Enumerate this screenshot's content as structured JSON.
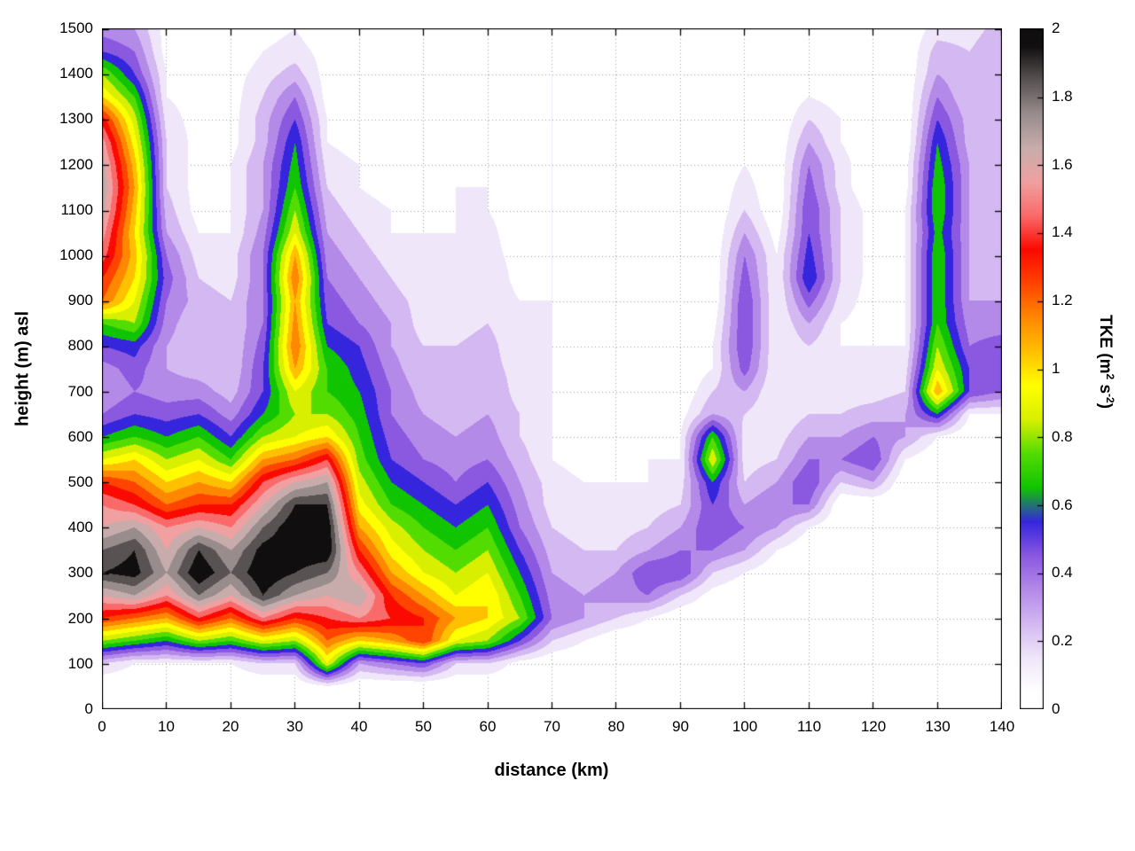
{
  "chart_data": {
    "type": "heatmap",
    "title": "",
    "xlabel": "distance (km)",
    "ylabel": "height (m) asl",
    "colorbar_label_plain": "TKE (m2 s-2)",
    "cblabel_parts": {
      "pre": "TKE (m",
      "sup1": "2",
      "mid": " s",
      "sup2": "-2",
      "post": ")"
    },
    "xlim": [
      0,
      140
    ],
    "ylim": [
      0,
      1500
    ],
    "clim": [
      0,
      2
    ],
    "grid": "dotted",
    "contour_interval": 0.1,
    "legend_position": "colorbar-right",
    "x_tick_labels": [
      "0",
      "10",
      "20",
      "30",
      "40",
      "50",
      "60",
      "70",
      "80",
      "90",
      "100",
      "110",
      "120",
      "130",
      "140"
    ],
    "y_tick_labels": [
      "0",
      "100",
      "200",
      "300",
      "400",
      "500",
      "600",
      "700",
      "800",
      "900",
      "1000",
      "1100",
      "1200",
      "1300",
      "1400",
      "1500"
    ],
    "cb_tick_labels": [
      "0",
      "0.2",
      "0.4",
      "0.6",
      "0.8",
      "1",
      "1.2",
      "1.4",
      "1.6",
      "1.8",
      "2"
    ],
    "x": [
      0,
      5,
      10,
      15,
      20,
      25,
      30,
      35,
      40,
      45,
      50,
      55,
      60,
      65,
      70,
      75,
      80,
      85,
      90,
      95,
      100,
      105,
      110,
      115,
      120,
      125,
      130,
      135,
      140
    ],
    "heights": [
      0,
      50,
      100,
      150,
      200,
      250,
      300,
      350,
      400,
      450,
      500,
      550,
      600,
      650,
      700,
      750,
      800,
      850,
      900,
      950,
      1000,
      1050,
      1100,
      1150,
      1200,
      1250,
      1300,
      1350,
      1400,
      1450,
      1500
    ],
    "tke": [
      [
        0,
        0,
        0,
        0,
        0,
        0,
        0,
        0,
        0,
        0,
        0,
        0,
        0,
        0,
        0,
        0,
        0,
        0,
        0,
        0,
        0,
        0,
        0,
        0,
        0,
        0,
        0,
        0,
        0
      ],
      [
        0,
        0,
        0,
        0,
        0,
        0,
        0,
        0.1,
        0,
        0,
        0,
        0,
        0,
        0,
        0,
        0,
        0,
        0,
        0,
        0,
        0,
        0,
        0,
        0,
        0,
        0,
        0,
        0,
        0
      ],
      [
        0.2,
        0.1,
        0.1,
        0.1,
        0.1,
        0.2,
        0.2,
        0.9,
        0.3,
        0.4,
        0.5,
        0.2,
        0.2,
        0.05,
        0,
        0,
        0,
        0,
        0,
        0,
        0,
        0,
        0,
        0,
        0,
        0,
        0,
        0,
        0
      ],
      [
        0.8,
        0.7,
        0.6,
        0.8,
        0.7,
        0.9,
        0.8,
        1.2,
        1.0,
        1.1,
        1.3,
        0.9,
        0.8,
        0.5,
        0.2,
        0.1,
        0,
        0,
        0,
        0,
        0,
        0,
        0,
        0,
        0,
        0,
        0,
        0,
        0
      ],
      [
        1.3,
        1.2,
        1.1,
        1.4,
        1.2,
        1.5,
        1.3,
        1.4,
        1.5,
        1.4,
        1.3,
        1.1,
        1.0,
        0.8,
        0.4,
        0.3,
        0.2,
        0.1,
        0,
        0,
        0,
        0,
        0,
        0,
        0,
        0,
        0,
        0,
        0
      ],
      [
        1.6,
        1.7,
        1.5,
        1.8,
        1.6,
        1.9,
        1.7,
        1.6,
        1.7,
        1.3,
        1.1,
        0.9,
        1.0,
        0.7,
        0.35,
        0.3,
        0.35,
        0.4,
        0.2,
        0.05,
        0,
        0,
        0,
        0,
        0,
        0,
        0,
        0,
        0
      ],
      [
        1.9,
        1.95,
        1.7,
        2.0,
        1.8,
        2.0,
        1.9,
        1.8,
        1.5,
        1.1,
        0.9,
        0.8,
        0.9,
        0.6,
        0.3,
        0.25,
        0.3,
        0.5,
        0.5,
        0.2,
        0.1,
        0,
        0,
        0,
        0,
        0,
        0,
        0,
        0
      ],
      [
        1.8,
        1.9,
        1.6,
        1.9,
        1.7,
        1.95,
        2.0,
        2.0,
        1.3,
        0.95,
        0.8,
        0.7,
        0.8,
        0.5,
        0.25,
        0.2,
        0.2,
        0.3,
        0.4,
        0.4,
        0.3,
        0.1,
        0,
        0,
        0,
        0,
        0,
        0,
        0
      ],
      [
        1.6,
        1.7,
        1.5,
        1.6,
        1.5,
        1.8,
        2.0,
        2.0,
        1.1,
        0.85,
        0.7,
        0.6,
        0.7,
        0.4,
        0.2,
        0.15,
        0.15,
        0.2,
        0.3,
        0.5,
        0.4,
        0.3,
        0.1,
        0,
        0,
        0,
        0,
        0,
        0
      ],
      [
        1.5,
        1.4,
        1.2,
        1.3,
        1.3,
        1.6,
        1.9,
        1.9,
        0.95,
        0.7,
        0.6,
        0.5,
        0.6,
        0.35,
        0.15,
        0.1,
        0.1,
        0.15,
        0.2,
        0.5,
        0.3,
        0.4,
        0.4,
        0,
        0,
        0,
        0,
        0,
        0
      ],
      [
        1.3,
        1.2,
        1.0,
        1.1,
        1.0,
        1.4,
        1.6,
        1.7,
        0.85,
        0.6,
        0.5,
        0.4,
        0.5,
        0.3,
        0.15,
        0.1,
        0.1,
        0.1,
        0.15,
        0.6,
        0.2,
        0.3,
        0.5,
        0.2,
        0.3,
        0,
        0,
        0,
        0
      ],
      [
        0.9,
        1.0,
        0.8,
        0.9,
        0.7,
        1.1,
        1.2,
        1.4,
        0.75,
        0.5,
        0.4,
        0.35,
        0.4,
        0.25,
        0.1,
        0.05,
        0.05,
        0.1,
        0.1,
        0.9,
        0.15,
        0.2,
        0.4,
        0.4,
        0.5,
        0.1,
        0,
        0,
        0
      ],
      [
        0.6,
        0.7,
        0.6,
        0.7,
        0.5,
        0.8,
        0.9,
        1.0,
        0.7,
        0.45,
        0.35,
        0.3,
        0.35,
        0.2,
        0.1,
        0.05,
        0.05,
        0.05,
        0.1,
        0.7,
        0.15,
        0.15,
        0.3,
        0.3,
        0.4,
        0.3,
        0.1,
        0,
        0
      ],
      [
        0.4,
        0.5,
        0.45,
        0.5,
        0.35,
        0.6,
        0.8,
        0.8,
        0.65,
        0.4,
        0.3,
        0.25,
        0.3,
        0.2,
        0.1,
        0.05,
        0,
        0,
        0.05,
        0.3,
        0.2,
        0.1,
        0.2,
        0.2,
        0.25,
        0.3,
        0.6,
        0.1,
        0.1
      ],
      [
        0.3,
        0.4,
        0.35,
        0.35,
        0.25,
        0.5,
        0.9,
        0.7,
        0.6,
        0.4,
        0.25,
        0.2,
        0.3,
        0.15,
        0.1,
        0.05,
        0,
        0,
        0,
        0.2,
        0.3,
        0.1,
        0.15,
        0.15,
        0.15,
        0.2,
        1.1,
        0.5,
        0.4
      ],
      [
        0.35,
        0.45,
        0.3,
        0.25,
        0.2,
        0.5,
        1.1,
        0.7,
        0.55,
        0.35,
        0.2,
        0.2,
        0.25,
        0.15,
        0.1,
        0.05,
        0,
        0,
        0,
        0.1,
        0.45,
        0.1,
        0.15,
        0.1,
        0.1,
        0.15,
        0.9,
        0.5,
        0.5
      ],
      [
        0.5,
        0.55,
        0.3,
        0.2,
        0.2,
        0.45,
        1.2,
        0.6,
        0.5,
        0.3,
        0.2,
        0.2,
        0.25,
        0.1,
        0.1,
        0.05,
        0,
        0,
        0,
        0.1,
        0.5,
        0.1,
        0.2,
        0.1,
        0.1,
        0.1,
        0.8,
        0.4,
        0.45
      ],
      [
        0.7,
        0.8,
        0.35,
        0.2,
        0.2,
        0.4,
        1.15,
        0.5,
        0.4,
        0.3,
        0.15,
        0.15,
        0.2,
        0.1,
        0.1,
        0.05,
        0,
        0,
        0,
        0.05,
        0.5,
        0.1,
        0.3,
        0.1,
        0.05,
        0.1,
        0.7,
        0.35,
        0.35
      ],
      [
        1.2,
        0.9,
        0.4,
        0.25,
        0.2,
        0.4,
        1.1,
        0.45,
        0.35,
        0.25,
        0.15,
        0.15,
        0.2,
        0.1,
        0.1,
        0.05,
        0,
        0,
        0,
        0,
        0.5,
        0.1,
        0.45,
        0.15,
        0.05,
        0.1,
        0.7,
        0.3,
        0.3
      ],
      [
        1.3,
        1.0,
        0.45,
        0.2,
        0.15,
        0.4,
        1.2,
        0.4,
        0.3,
        0.2,
        0.1,
        0.15,
        0.2,
        0.05,
        0.1,
        0.05,
        0,
        0,
        0,
        0,
        0.45,
        0.1,
        0.6,
        0.2,
        0.05,
        0.1,
        0.7,
        0.3,
        0.3
      ],
      [
        1.45,
        1.05,
        0.4,
        0.15,
        0.15,
        0.4,
        1.1,
        0.35,
        0.25,
        0.15,
        0.1,
        0.15,
        0.15,
        0.05,
        0.1,
        0.05,
        0,
        0,
        0,
        0,
        0.4,
        0.1,
        0.55,
        0.2,
        0.05,
        0.1,
        0.7,
        0.3,
        0.3
      ],
      [
        1.55,
        1.0,
        0.3,
        0.1,
        0.1,
        0.35,
        0.9,
        0.3,
        0.2,
        0.1,
        0.1,
        0.1,
        0.15,
        0,
        0.1,
        0.05,
        0,
        0,
        0,
        0,
        0.3,
        0.05,
        0.5,
        0.2,
        0.05,
        0.1,
        0.65,
        0.3,
        0.25
      ],
      [
        1.65,
        1.05,
        0.25,
        0.05,
        0.1,
        0.3,
        0.8,
        0.25,
        0.15,
        0.1,
        0.05,
        0.1,
        0.1,
        0,
        0.1,
        0.05,
        0,
        0,
        0,
        0,
        0.2,
        0,
        0.5,
        0.2,
        0.05,
        0.1,
        0.7,
        0.3,
        0.3
      ],
      [
        1.7,
        1.1,
        0.2,
        0.05,
        0.1,
        0.3,
        0.7,
        0.2,
        0.1,
        0.05,
        0.05,
        0.1,
        0.1,
        0,
        0.1,
        0.05,
        0,
        0,
        0,
        0,
        0.15,
        0,
        0.45,
        0.15,
        0,
        0.05,
        0.7,
        0.3,
        0.3
      ],
      [
        1.65,
        1.05,
        0.2,
        0.05,
        0.1,
        0.3,
        0.65,
        0.15,
        0.1,
        0.05,
        0,
        0.1,
        0.05,
        0,
        0.1,
        0,
        0,
        0,
        0,
        0,
        0.1,
        0,
        0.4,
        0.15,
        0,
        0.05,
        0.65,
        0.3,
        0.3
      ],
      [
        1.55,
        0.95,
        0.2,
        0.05,
        0.05,
        0.25,
        0.6,
        0.1,
        0.05,
        0,
        0,
        0.1,
        0.05,
        0,
        0.1,
        0,
        0,
        0,
        0,
        0,
        0.05,
        0,
        0.3,
        0.1,
        0,
        0,
        0.6,
        0.25,
        0.3
      ],
      [
        1.35,
        0.85,
        0.15,
        0.05,
        0.05,
        0.25,
        0.5,
        0.1,
        0,
        0,
        0,
        0.1,
        0,
        0,
        0.1,
        0,
        0,
        0,
        0,
        0,
        0,
        0,
        0.2,
        0.1,
        0,
        0,
        0.5,
        0.25,
        0.3
      ],
      [
        1.0,
        0.7,
        0.1,
        0.05,
        0.05,
        0.2,
        0.4,
        0.05,
        0,
        0,
        0,
        0.1,
        0,
        0,
        0.1,
        0,
        0,
        0,
        0,
        0,
        0,
        0,
        0.1,
        0.05,
        0,
        0,
        0.4,
        0.2,
        0.3
      ],
      [
        0.8,
        0.5,
        0.1,
        0.05,
        0.05,
        0.15,
        0.25,
        0.05,
        0,
        0,
        0,
        0.1,
        0,
        0,
        0.1,
        0,
        0,
        0,
        0,
        0,
        0,
        0,
        0.05,
        0,
        0,
        0,
        0.3,
        0.2,
        0.3
      ],
      [
        0.5,
        0.4,
        0.05,
        0.05,
        0,
        0.1,
        0.15,
        0.05,
        0,
        0,
        0,
        0.05,
        0,
        0,
        0.05,
        0,
        0,
        0,
        0,
        0,
        0,
        0,
        0,
        0,
        0,
        0,
        0.25,
        0.2,
        0.3
      ],
      [
        0.35,
        0.3,
        0.05,
        0,
        0,
        0.05,
        0.1,
        0,
        0,
        0,
        0,
        0,
        0,
        0,
        0,
        0,
        0,
        0,
        0,
        0,
        0,
        0,
        0,
        0,
        0,
        0,
        0.15,
        0.15,
        0.25
      ]
    ],
    "palette_bands": [
      "#ffffff",
      "#efe6f9",
      "#d4b8f2",
      "#b48ae9",
      "#8b58e0",
      "#3526dd",
      "#11c400",
      "#52dc00",
      "#d8ef00",
      "#ffff00",
      "#ffc000",
      "#ff8800",
      "#ff4400",
      "#fa0a00",
      "#fa6a6a",
      "#f0a0a0",
      "#c8acac",
      "#988c8c",
      "#585252",
      "#100e0e"
    ],
    "grid_color": "#999999",
    "axis_color": "#000000"
  }
}
